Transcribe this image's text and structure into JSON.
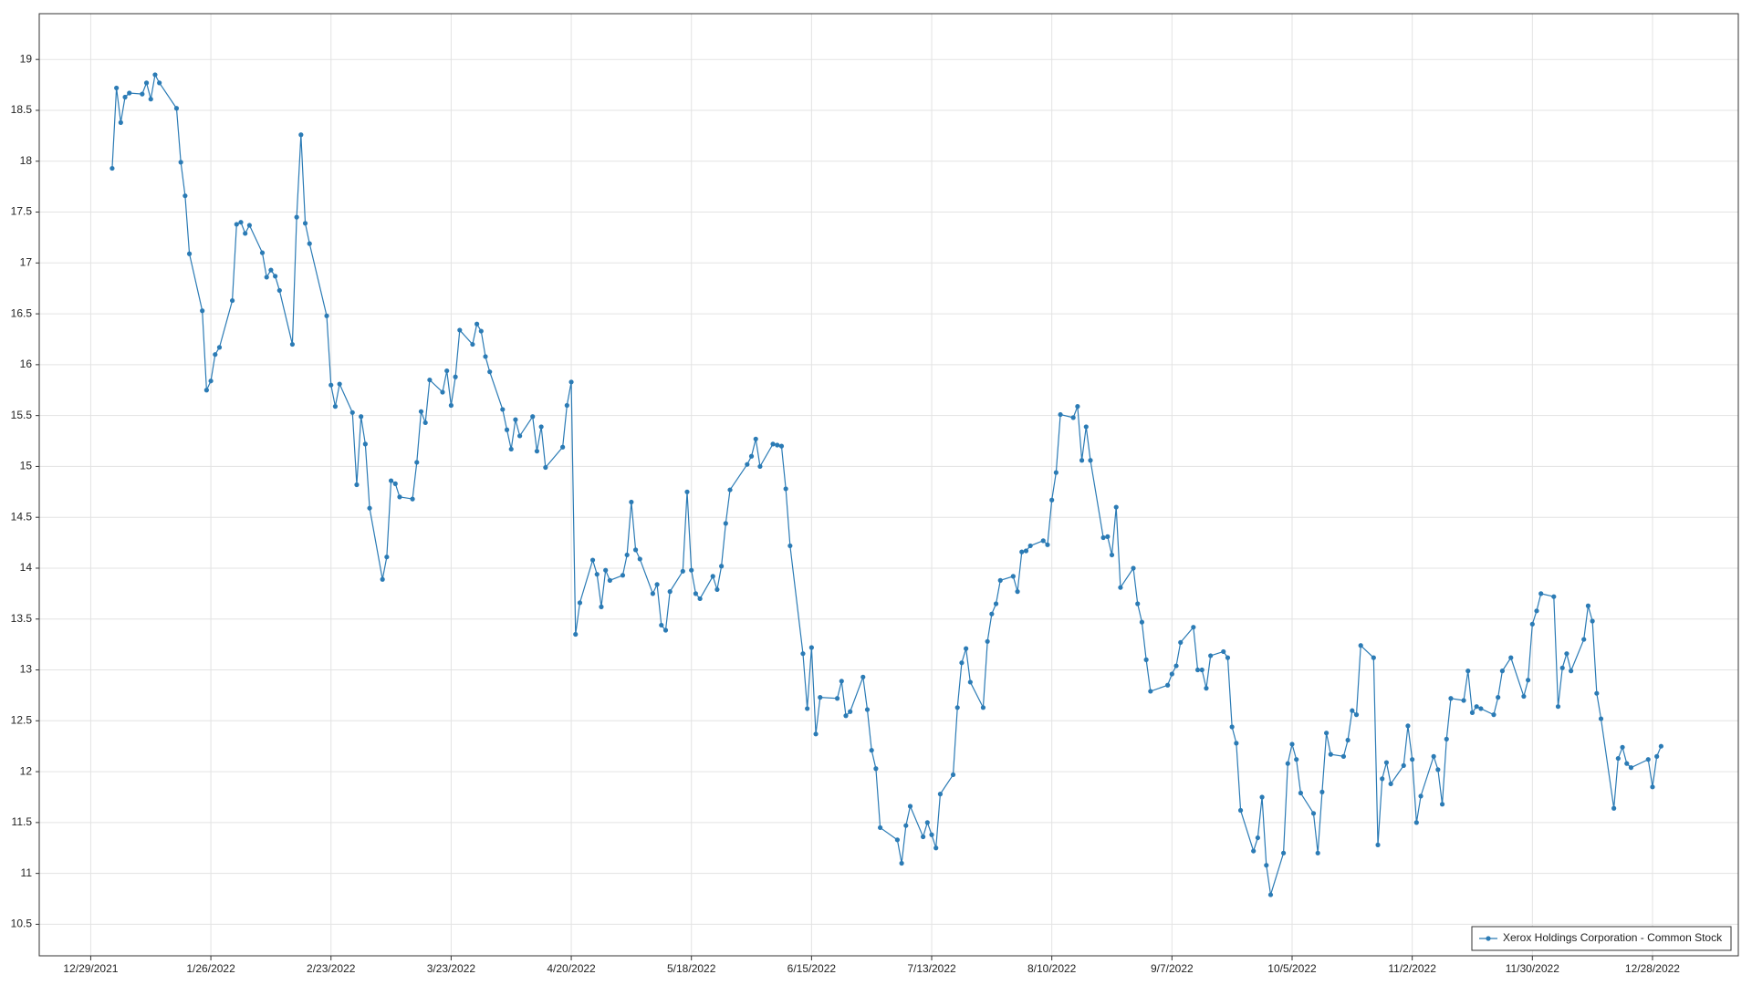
{
  "chart_data": {
    "type": "line",
    "xlim": [
      "2021-12-17",
      "2023-01-17"
    ],
    "ylim": [
      10.19,
      19.45
    ],
    "xticks": [
      {
        "value": "2021-12-29",
        "label": "12/29/2021"
      },
      {
        "value": "2022-01-26",
        "label": "1/26/2022"
      },
      {
        "value": "2022-02-23",
        "label": "2/23/2022"
      },
      {
        "value": "2022-03-23",
        "label": "3/23/2022"
      },
      {
        "value": "2022-04-20",
        "label": "4/20/2022"
      },
      {
        "value": "2022-05-18",
        "label": "5/18/2022"
      },
      {
        "value": "2022-06-15",
        "label": "6/15/2022"
      },
      {
        "value": "2022-07-13",
        "label": "7/13/2022"
      },
      {
        "value": "2022-08-10",
        "label": "8/10/2022"
      },
      {
        "value": "2022-09-07",
        "label": "9/7/2022"
      },
      {
        "value": "2022-10-05",
        "label": "10/5/2022"
      },
      {
        "value": "2022-11-02",
        "label": "11/2/2022"
      },
      {
        "value": "2022-11-30",
        "label": "11/30/2022"
      },
      {
        "value": "2022-12-28",
        "label": "12/28/2022"
      }
    ],
    "yticks": [
      10.5,
      11,
      11.5,
      12,
      12.5,
      13,
      13.5,
      14,
      14.5,
      15,
      15.5,
      16,
      16.5,
      17,
      17.5,
      18,
      18.5,
      19
    ],
    "grid": true,
    "legend": "bottom-right",
    "x": [
      "2022-01-03",
      "2022-01-04",
      "2022-01-05",
      "2022-01-06",
      "2022-01-07",
      "2022-01-10",
      "2022-01-11",
      "2022-01-12",
      "2022-01-13",
      "2022-01-14",
      "2022-01-18",
      "2022-01-19",
      "2022-01-20",
      "2022-01-21",
      "2022-01-24",
      "2022-01-25",
      "2022-01-26",
      "2022-01-27",
      "2022-01-28",
      "2022-01-31",
      "2022-02-01",
      "2022-02-02",
      "2022-02-03",
      "2022-02-04",
      "2022-02-07",
      "2022-02-08",
      "2022-02-09",
      "2022-02-10",
      "2022-02-11",
      "2022-02-14",
      "2022-02-15",
      "2022-02-16",
      "2022-02-17",
      "2022-02-18",
      "2022-02-22",
      "2022-02-23",
      "2022-02-24",
      "2022-02-25",
      "2022-02-28",
      "2022-03-01",
      "2022-03-02",
      "2022-03-03",
      "2022-03-04",
      "2022-03-07",
      "2022-03-08",
      "2022-03-09",
      "2022-03-10",
      "2022-03-11",
      "2022-03-14",
      "2022-03-15",
      "2022-03-16",
      "2022-03-17",
      "2022-03-18",
      "2022-03-21",
      "2022-03-22",
      "2022-03-23",
      "2022-03-24",
      "2022-03-25",
      "2022-03-28",
      "2022-03-29",
      "2022-03-30",
      "2022-03-31",
      "2022-04-01",
      "2022-04-04",
      "2022-04-05",
      "2022-04-06",
      "2022-04-07",
      "2022-04-08",
      "2022-04-11",
      "2022-04-12",
      "2022-04-13",
      "2022-04-14",
      "2022-04-18",
      "2022-04-19",
      "2022-04-20",
      "2022-04-21",
      "2022-04-22",
      "2022-04-25",
      "2022-04-26",
      "2022-04-27",
      "2022-04-28",
      "2022-04-29",
      "2022-05-02",
      "2022-05-03",
      "2022-05-04",
      "2022-05-05",
      "2022-05-06",
      "2022-05-09",
      "2022-05-10",
      "2022-05-11",
      "2022-05-12",
      "2022-05-13",
      "2022-05-16",
      "2022-05-17",
      "2022-05-18",
      "2022-05-19",
      "2022-05-20",
      "2022-05-23",
      "2022-05-24",
      "2022-05-25",
      "2022-05-26",
      "2022-05-27",
      "2022-05-31",
      "2022-06-01",
      "2022-06-02",
      "2022-06-03",
      "2022-06-06",
      "2022-06-07",
      "2022-06-08",
      "2022-06-09",
      "2022-06-10",
      "2022-06-13",
      "2022-06-14",
      "2022-06-15",
      "2022-06-16",
      "2022-06-17",
      "2022-06-21",
      "2022-06-22",
      "2022-06-23",
      "2022-06-24",
      "2022-06-27",
      "2022-06-28",
      "2022-06-29",
      "2022-06-30",
      "2022-07-01",
      "2022-07-05",
      "2022-07-06",
      "2022-07-07",
      "2022-07-08",
      "2022-07-11",
      "2022-07-12",
      "2022-07-13",
      "2022-07-14",
      "2022-07-15",
      "2022-07-18",
      "2022-07-19",
      "2022-07-20",
      "2022-07-21",
      "2022-07-22",
      "2022-07-25",
      "2022-07-26",
      "2022-07-27",
      "2022-07-28",
      "2022-07-29",
      "2022-08-01",
      "2022-08-02",
      "2022-08-03",
      "2022-08-04",
      "2022-08-05",
      "2022-08-08",
      "2022-08-09",
      "2022-08-10",
      "2022-08-11",
      "2022-08-12",
      "2022-08-15",
      "2022-08-16",
      "2022-08-17",
      "2022-08-18",
      "2022-08-19",
      "2022-08-22",
      "2022-08-23",
      "2022-08-24",
      "2022-08-25",
      "2022-08-26",
      "2022-08-29",
      "2022-08-30",
      "2022-08-31",
      "2022-09-01",
      "2022-09-02",
      "2022-09-06",
      "2022-09-07",
      "2022-09-08",
      "2022-09-09",
      "2022-09-12",
      "2022-09-13",
      "2022-09-14",
      "2022-09-15",
      "2022-09-16",
      "2022-09-19",
      "2022-09-20",
      "2022-09-21",
      "2022-09-22",
      "2022-09-23",
      "2022-09-26",
      "2022-09-27",
      "2022-09-28",
      "2022-09-29",
      "2022-09-30",
      "2022-10-03",
      "2022-10-04",
      "2022-10-05",
      "2022-10-06",
      "2022-10-07",
      "2022-10-10",
      "2022-10-11",
      "2022-10-12",
      "2022-10-13",
      "2022-10-14",
      "2022-10-17",
      "2022-10-18",
      "2022-10-19",
      "2022-10-20",
      "2022-10-21",
      "2022-10-24",
      "2022-10-25",
      "2022-10-26",
      "2022-10-27",
      "2022-10-28",
      "2022-10-31",
      "2022-11-01",
      "2022-11-02",
      "2022-11-03",
      "2022-11-04",
      "2022-11-07",
      "2022-11-08",
      "2022-11-09",
      "2022-11-10",
      "2022-11-11",
      "2022-11-14",
      "2022-11-15",
      "2022-11-16",
      "2022-11-17",
      "2022-11-18",
      "2022-11-21",
      "2022-11-22",
      "2022-11-23",
      "2022-11-25",
      "2022-11-28",
      "2022-11-29",
      "2022-11-30",
      "2022-12-01",
      "2022-12-02",
      "2022-12-05",
      "2022-12-06",
      "2022-12-07",
      "2022-12-08",
      "2022-12-09",
      "2022-12-12",
      "2022-12-13",
      "2022-12-14",
      "2022-12-15",
      "2022-12-16",
      "2022-12-19",
      "2022-12-20",
      "2022-12-21",
      "2022-12-22",
      "2022-12-23",
      "2022-12-27",
      "2022-12-28",
      "2022-12-29",
      "2022-12-30"
    ],
    "series": [
      {
        "name": "Xerox Holdings Corporation - Common Stock",
        "color": "#2b7bb5",
        "values": [
          17.93,
          18.72,
          18.38,
          18.63,
          18.67,
          18.66,
          18.77,
          18.61,
          18.85,
          18.77,
          18.52,
          17.99,
          17.66,
          17.09,
          16.53,
          15.75,
          15.84,
          16.1,
          16.17,
          16.63,
          17.38,
          17.4,
          17.29,
          17.37,
          17.1,
          16.86,
          16.93,
          16.87,
          16.73,
          16.2,
          17.45,
          18.26,
          17.39,
          17.19,
          16.48,
          15.8,
          15.59,
          15.81,
          15.53,
          14.82,
          15.49,
          15.22,
          14.59,
          13.89,
          14.11,
          14.86,
          14.83,
          14.7,
          14.68,
          15.04,
          15.54,
          15.43,
          15.85,
          15.73,
          15.94,
          15.6,
          15.88,
          16.34,
          16.2,
          16.4,
          16.33,
          16.08,
          15.93,
          15.56,
          15.36,
          15.17,
          15.46,
          15.3,
          15.49,
          15.15,
          15.39,
          14.99,
          15.19,
          15.6,
          15.83,
          13.35,
          13.66,
          14.08,
          13.94,
          13.62,
          13.98,
          13.88,
          13.93,
          14.13,
          14.65,
          14.18,
          14.09,
          13.75,
          13.84,
          13.44,
          13.39,
          13.77,
          13.97,
          14.75,
          13.98,
          13.75,
          13.7,
          13.92,
          13.79,
          14.02,
          14.44,
          14.77,
          15.02,
          15.1,
          15.27,
          15.0,
          15.22,
          15.21,
          15.2,
          14.78,
          14.22,
          13.16,
          12.62,
          13.22,
          12.37,
          12.73,
          12.72,
          12.89,
          12.55,
          12.59,
          12.93,
          12.61,
          12.21,
          12.03,
          11.45,
          11.33,
          11.1,
          11.47,
          11.66,
          11.36,
          11.5,
          11.38,
          11.25,
          11.78,
          11.97,
          12.63,
          13.07,
          13.21,
          12.88,
          12.63,
          13.28,
          13.55,
          13.65,
          13.88,
          13.92,
          13.77,
          14.16,
          14.17,
          14.22,
          14.27,
          14.23,
          14.67,
          14.94,
          15.51,
          15.48,
          15.59,
          15.06,
          15.39,
          15.06,
          14.3,
          14.31,
          14.13,
          14.6,
          13.81,
          14.0,
          13.65,
          13.47,
          13.1,
          12.79,
          12.85,
          12.96,
          13.04,
          13.27,
          13.42,
          13.0,
          13.0,
          12.82,
          13.14,
          13.18,
          13.12,
          12.44,
          12.28,
          11.62,
          11.22,
          11.35,
          11.75,
          11.08,
          10.79,
          11.2,
          12.08,
          12.27,
          12.12,
          11.79,
          11.59,
          11.2,
          11.8,
          12.38,
          12.17,
          12.15,
          12.31,
          12.6,
          12.56,
          13.24,
          13.12,
          11.28,
          11.93,
          12.09,
          11.88,
          12.06,
          12.45,
          12.12,
          11.5,
          11.76,
          12.15,
          12.02,
          11.68,
          12.32,
          12.72,
          12.7,
          12.99,
          12.58,
          12.64,
          12.62,
          12.56,
          12.73,
          12.99,
          13.12,
          12.74,
          12.9,
          13.45,
          13.58,
          13.75,
          13.72,
          12.64,
          13.02,
          13.16,
          12.99,
          13.3,
          13.63,
          13.48,
          12.77,
          12.52,
          11.64,
          12.13,
          12.24,
          12.08,
          12.04,
          12.12,
          11.85,
          12.15,
          12.25
        ]
      }
    ]
  }
}
